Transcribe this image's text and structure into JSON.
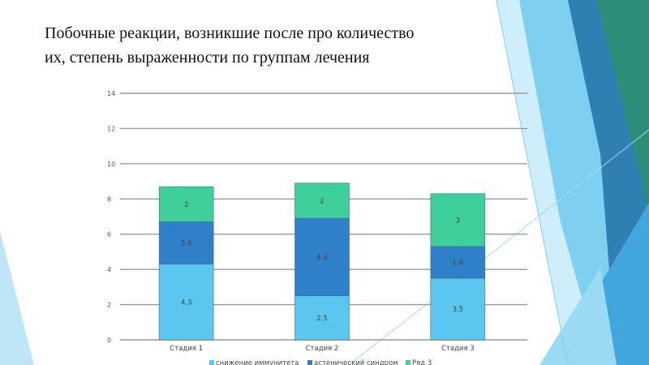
{
  "slide": {
    "title_line1": "Побочные реакции, возникшие после про количество",
    "title_line2": "их, степень выраженности по группам лечения"
  },
  "colors": {
    "series": [
      "#5bc6ef",
      "#2f80c8",
      "#3fcf9a"
    ],
    "grid": "#999999",
    "deco_light": "#bfe6f7",
    "deco_mid": "#67c3ea",
    "deco_dark": "#2f7fb3",
    "deco_green": "#2e8e7a"
  },
  "chart_data": {
    "type": "bar",
    "stacked": true,
    "categories": [
      "Стадия 1",
      "Стадия 2",
      "Стадия 3"
    ],
    "series": [
      {
        "name": "снижение иммунитета",
        "values": [
          4.3,
          2.5,
          3.5
        ]
      },
      {
        "name": "астенический синдром",
        "values": [
          2.4,
          4.4,
          1.8
        ]
      },
      {
        "name": "Ряд 3",
        "values": [
          2,
          2,
          3
        ]
      }
    ],
    "yticks": [
      "0",
      "2",
      "4",
      "6",
      "8",
      "10",
      "12",
      "14"
    ],
    "ylim": [
      0,
      14
    ],
    "grid": true,
    "legend_position": "bottom"
  }
}
